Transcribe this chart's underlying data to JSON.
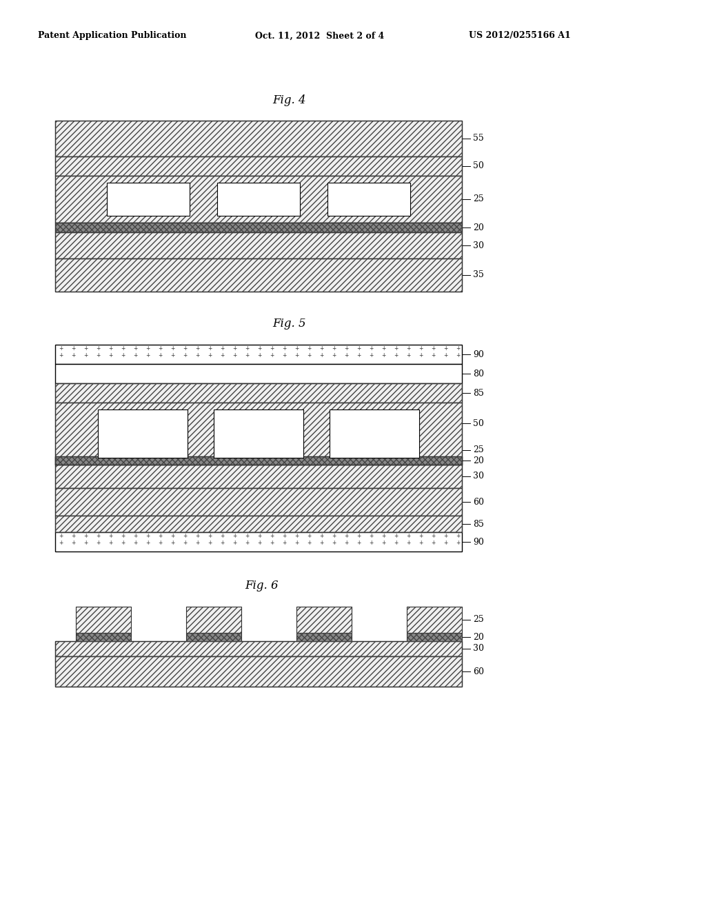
{
  "bg_color": "#ffffff",
  "header_text": "Patent Application Publication",
  "header_date": "Oct. 11, 2012  Sheet 2 of 4",
  "header_patent": "US 2012/0255166 A1",
  "fig4_title": "Fig. 4",
  "fig5_title": "Fig. 5",
  "fig6_title": "Fig. 6",
  "fontsize_lbl": 9,
  "fontsize_title": 12,
  "fontsize_header": 9,
  "lw_border": 1.0,
  "lw_hatch": 0.5,
  "lw_label": 0.7,
  "hatch_diag": "////",
  "hatch_dark": "xxxx",
  "fc_hatch": "#f0f0f0",
  "fc_dark": "#888888",
  "fc_white": "#ffffff",
  "ec_black": "#000000",
  "ec_hatch": "#444444"
}
